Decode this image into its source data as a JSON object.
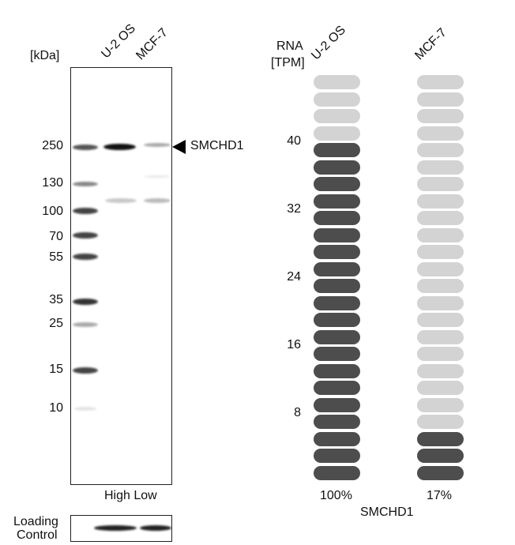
{
  "blot": {
    "unit_label": "[kDa]",
    "lanes": [
      "U-2 OS",
      "MCF-7"
    ],
    "markers": [
      "250",
      "130",
      "100",
      "70",
      "55",
      "35",
      "25",
      "15",
      "10"
    ],
    "target_label": "SMCHD1",
    "lane_levels": "High Low",
    "loading_control_label_1": "Loading",
    "loading_control_label_2": "Control"
  },
  "rna": {
    "header_1": "RNA",
    "header_2": "[TPM]",
    "axis_ticks": [
      "40",
      "32",
      "24",
      "16",
      "8"
    ],
    "gene": "SMCHD1",
    "total_segments": 24,
    "dark_color": "#4d4d4d",
    "light_color": "#d3d3d3",
    "samples": [
      {
        "name": "U-2 OS",
        "percent": "100%",
        "filled_segments": 20
      },
      {
        "name": "MCF-7",
        "percent": "17%",
        "filled_segments": 3
      }
    ]
  }
}
